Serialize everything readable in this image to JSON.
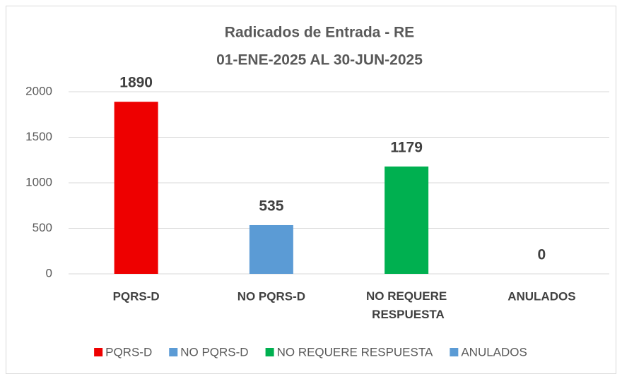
{
  "chart_data": {
    "type": "bar",
    "title": "Radicados de Entrada - RE",
    "subtitle": "01-ENE-2025 AL 30-JUN-2025",
    "categories": [
      "PQRS-D",
      "NO PQRS-D",
      "NO REQUERE RESPUESTA",
      "ANULADOS"
    ],
    "values": [
      1890,
      535,
      1179,
      0
    ],
    "colors": [
      "#ee0000",
      "#5b9bd5",
      "#00b050",
      "#5b9bd5"
    ],
    "ylim": [
      0,
      2000
    ],
    "yticks": [
      0,
      500,
      1000,
      1500,
      2000
    ],
    "grid": true,
    "legend": "bottom"
  }
}
